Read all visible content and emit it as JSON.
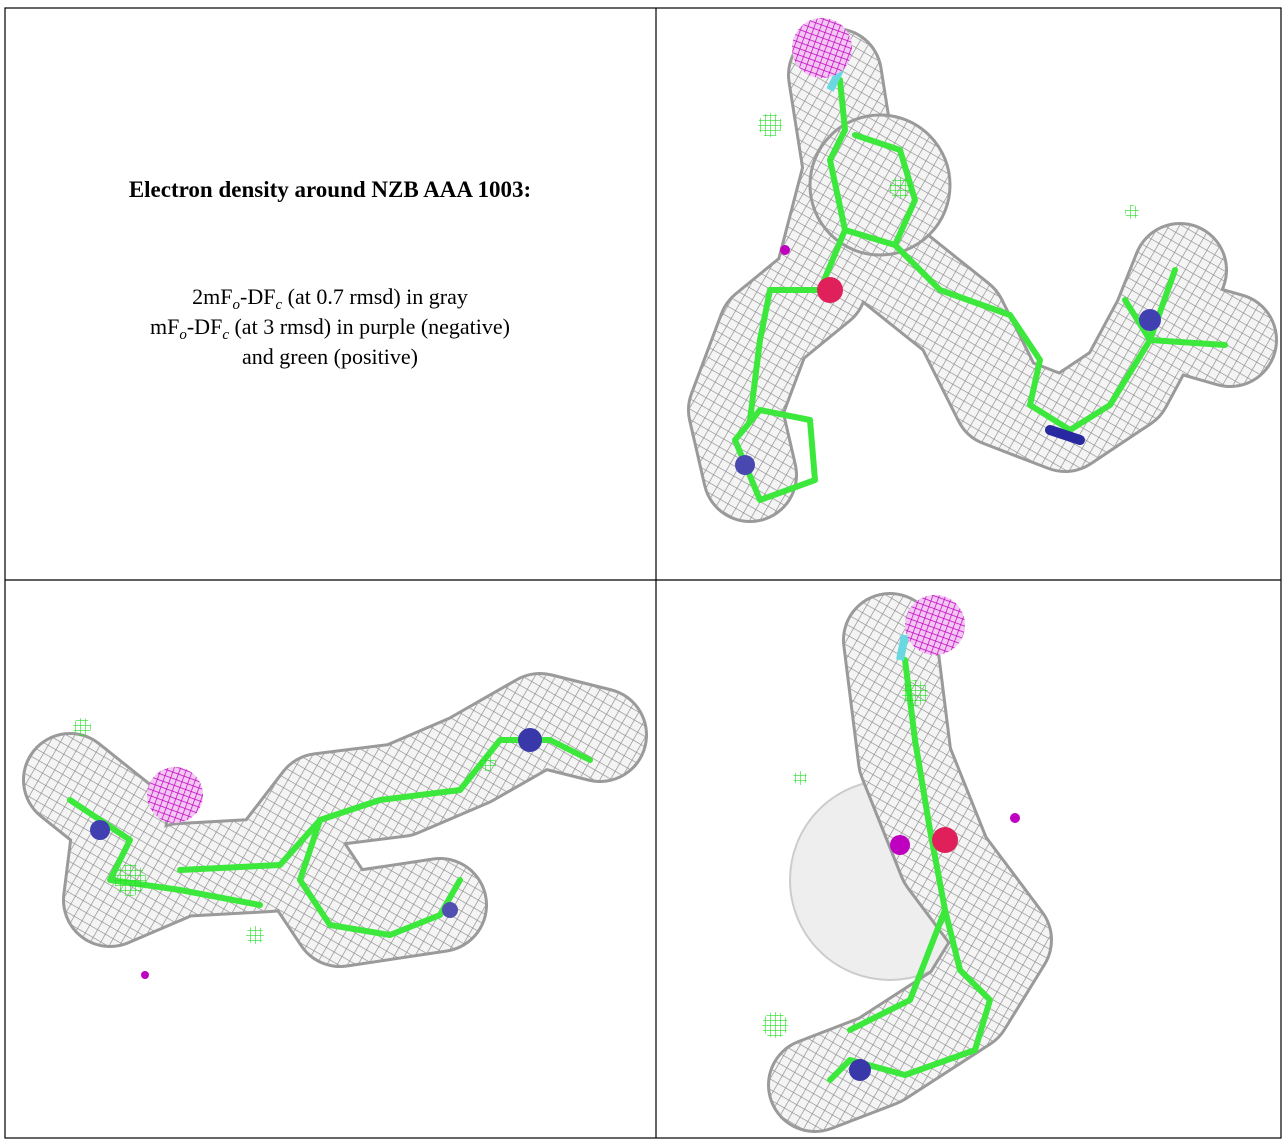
{
  "caption": {
    "title": "Electron density around NZB AAA 1003:",
    "lines": [
      {
        "parts": [
          "2mF",
          "o",
          "-DF",
          "c",
          " (at 0.7 rmsd) in gray"
        ]
      },
      {
        "parts": [
          "mF",
          "o",
          "-DF",
          "c",
          " (at 3 rmsd) in purple (negative)"
        ]
      },
      {
        "parts": [
          "and green (positive)"
        ]
      }
    ]
  }
}
